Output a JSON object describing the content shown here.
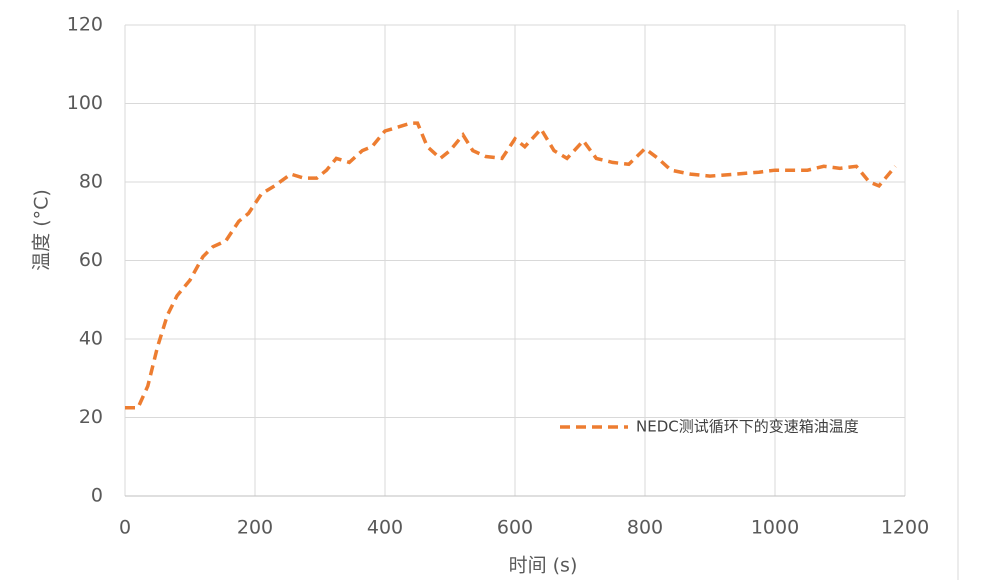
{
  "chart_data": {
    "type": "line",
    "x_label": "时间 (s)",
    "y_label": "温度 (°C)",
    "xlim": [
      0,
      1200
    ],
    "xticks": [
      0,
      200,
      400,
      600,
      800,
      1000,
      1200
    ],
    "ylim": [
      0,
      120
    ],
    "yticks": [
      0,
      20,
      40,
      60,
      80,
      100,
      120
    ],
    "grid": true,
    "legend": "lower right",
    "x": [
      0,
      20,
      35,
      50,
      65,
      80,
      100,
      120,
      135,
      155,
      175,
      190,
      210,
      230,
      255,
      275,
      295,
      310,
      325,
      345,
      365,
      380,
      400,
      420,
      440,
      450,
      465,
      485,
      500,
      520,
      535,
      555,
      580,
      600,
      615,
      640,
      660,
      680,
      705,
      725,
      750,
      775,
      800,
      820,
      840,
      870,
      900,
      940,
      975,
      1000,
      1050,
      1075,
      1100,
      1125,
      1145,
      1160,
      1185
    ],
    "series": [
      {
        "name": "NEDC测试循环下的变速箱油温度",
        "color": "#ed7d31",
        "values": [
          22.5,
          22.5,
          28,
          38,
          46,
          51,
          55,
          61,
          63.5,
          65,
          70,
          72,
          77,
          79,
          82,
          81,
          81,
          83,
          86,
          85,
          88,
          89,
          93,
          94,
          95,
          95,
          89,
          86,
          88,
          92,
          88,
          86.5,
          86,
          91,
          89,
          93.5,
          88,
          86,
          90.5,
          86,
          85,
          84.5,
          88.5,
          86,
          83,
          82,
          81.5,
          82,
          82.5,
          83,
          83,
          84,
          83.5,
          84,
          80,
          79,
          84
        ]
      }
    ]
  }
}
